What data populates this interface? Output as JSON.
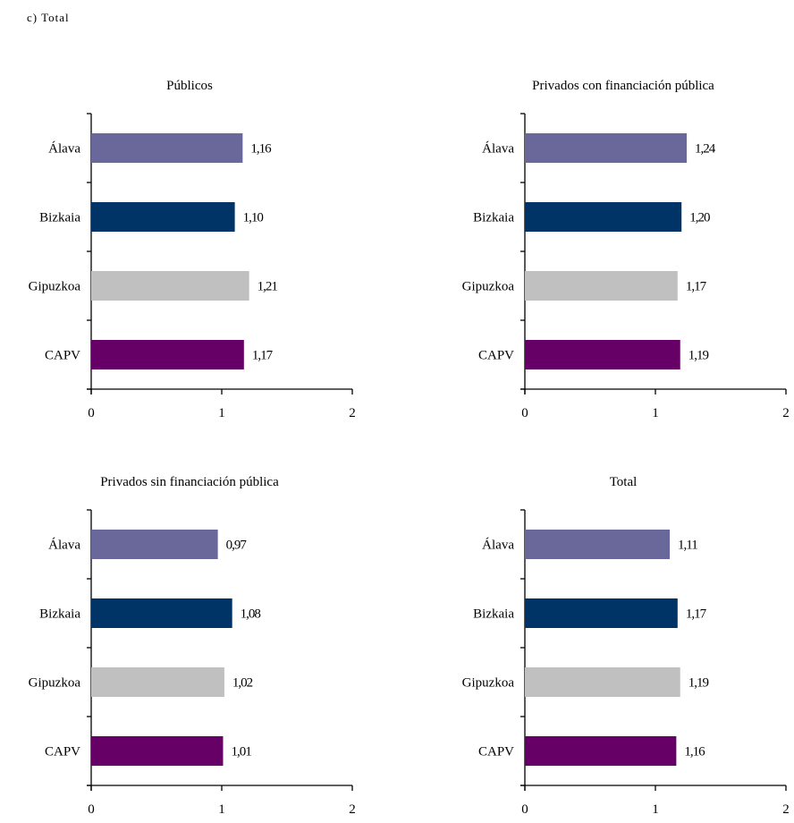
{
  "header": "c) Total",
  "colors": {
    "Álava": "#6a679b",
    "Bizkaia": "#003366",
    "Gipuzkoa": "#c0c0c0",
    "CAPV": "#660066"
  },
  "chart_data": [
    {
      "type": "bar",
      "orientation": "horizontal",
      "title": "Públicos",
      "categories": [
        "Álava",
        "Bizkaia",
        "Gipuzkoa",
        "CAPV"
      ],
      "values": [
        1.16,
        1.1,
        1.21,
        1.17
      ],
      "value_labels": [
        "1,16",
        "1,10",
        "1,21",
        "1,17"
      ],
      "xlim": [
        0,
        2
      ],
      "x_ticks": [
        0,
        1,
        2
      ],
      "x_tick_labels": [
        "0",
        "1",
        "2"
      ],
      "xlabel": "",
      "ylabel": ""
    },
    {
      "type": "bar",
      "orientation": "horizontal",
      "title": "Privados con financiación pública",
      "categories": [
        "Álava",
        "Bizkaia",
        "Gipuzkoa",
        "CAPV"
      ],
      "values": [
        1.24,
        1.2,
        1.17,
        1.19
      ],
      "value_labels": [
        "1,24",
        "1,20",
        "1,17",
        "1,19"
      ],
      "xlim": [
        0,
        2
      ],
      "x_ticks": [
        0,
        1,
        2
      ],
      "x_tick_labels": [
        "0",
        "1",
        "2"
      ],
      "xlabel": "",
      "ylabel": ""
    },
    {
      "type": "bar",
      "orientation": "horizontal",
      "title": "Privados sin financiación pública",
      "categories": [
        "Álava",
        "Bizkaia",
        "Gipuzkoa",
        "CAPV"
      ],
      "values": [
        0.97,
        1.08,
        1.02,
        1.01
      ],
      "value_labels": [
        "0,97",
        "1,08",
        "1,02",
        "1,01"
      ],
      "xlim": [
        0,
        2
      ],
      "x_ticks": [
        0,
        1,
        2
      ],
      "x_tick_labels": [
        "0",
        "1",
        "2"
      ],
      "xlabel": "",
      "ylabel": ""
    },
    {
      "type": "bar",
      "orientation": "horizontal",
      "title": "Total",
      "categories": [
        "Álava",
        "Bizkaia",
        "Gipuzkoa",
        "CAPV"
      ],
      "values": [
        1.11,
        1.17,
        1.19,
        1.16
      ],
      "value_labels": [
        "1,11",
        "1,17",
        "1,19",
        "1,16"
      ],
      "xlim": [
        0,
        2
      ],
      "x_ticks": [
        0,
        1,
        2
      ],
      "x_tick_labels": [
        "0",
        "1",
        "2"
      ],
      "xlabel": "",
      "ylabel": ""
    }
  ]
}
